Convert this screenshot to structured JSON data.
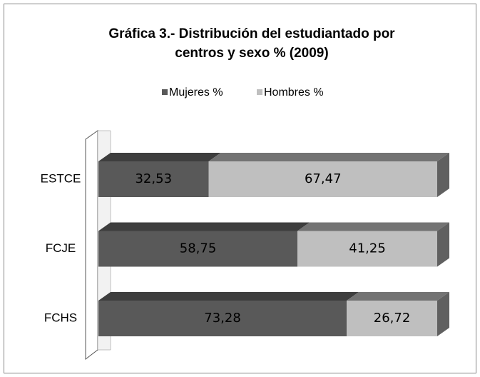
{
  "chart_data": {
    "type": "bar3d_stacked_horizontal",
    "title": "Gráfica 3.- Distribución del estudiantado por centros y sexo % (2009)",
    "title_lines": [
      "Gráfica 3.- Distribución del estudiantado por",
      "centros y sexo % (2009)"
    ],
    "categories": [
      "ESTCE",
      "FCJE",
      "FCHS"
    ],
    "series": [
      {
        "name": "Mujeres %",
        "color": "#595959",
        "values": [
          32.53,
          58.75,
          73.28
        ],
        "value_labels": [
          "32,53",
          "58,75",
          "73,28"
        ]
      },
      {
        "name": "Hombres %",
        "color": "#bfbfbf",
        "values": [
          67.47,
          41.25,
          26.72
        ],
        "value_labels": [
          "67,47",
          "41,25",
          "26,72"
        ]
      }
    ],
    "xlim": [
      0,
      100
    ],
    "legend": "top"
  }
}
